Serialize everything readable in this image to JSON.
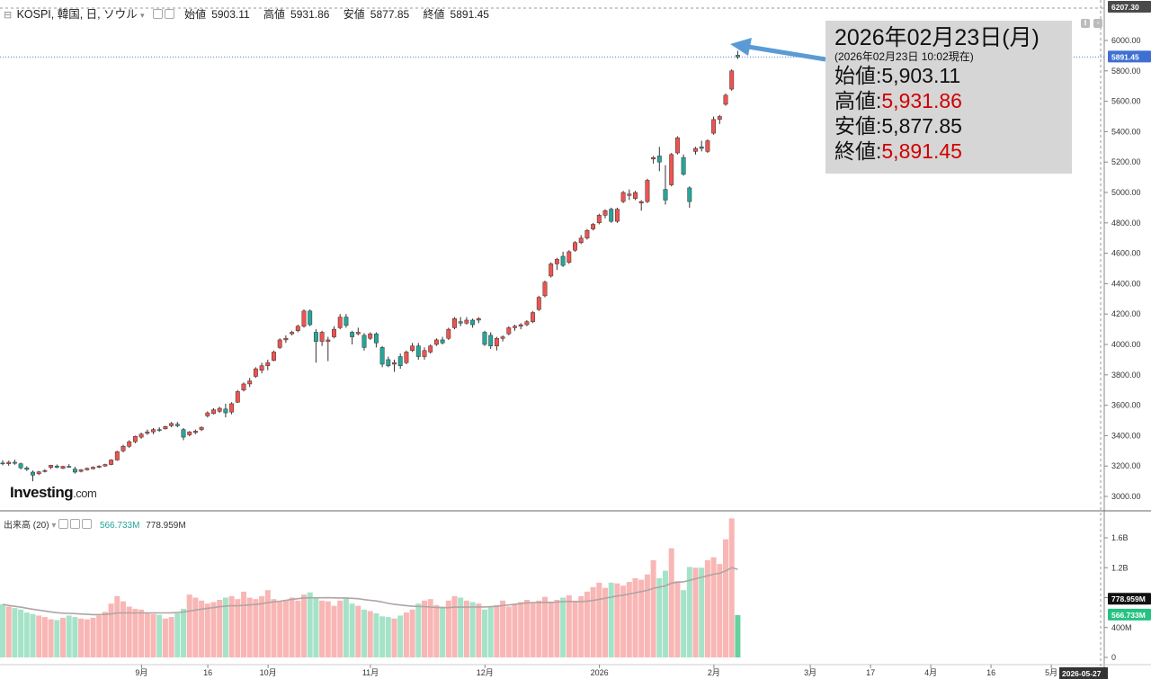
{
  "header": {
    "symbol": "KOSPI, 韓国, 日, ソウル",
    "open_label": "始値",
    "open": "5903.11",
    "high_label": "高値",
    "high": "5931.86",
    "low_label": "安値",
    "low": "5877.85",
    "close_label": "終値",
    "close": "5891.45"
  },
  "volume_header": {
    "label": "出来高 (20)",
    "value1": "566.733M",
    "value2": "778.959M"
  },
  "logo": {
    "main": "Investing",
    "suffix": ".com"
  },
  "info_box": {
    "date": "2026年02月23日(月)",
    "timestamp": "(2026年02月23日 10:02現在)",
    "open_label": "始値:",
    "open": "5,903.11",
    "high_label": "高値:",
    "high": "5,931.86",
    "low_label": "安値:",
    "low": "5,877.85",
    "close_label": "終値:",
    "close": "5,891.45"
  },
  "badges": {
    "top": "6207.30",
    "last": "5891.45",
    "ma": "778.959M",
    "vol": "566.733M",
    "date": "2026-05-27"
  },
  "colors": {
    "up": "#ef5350",
    "down": "#26a69a",
    "up_vol": "#f8b6b4",
    "down_vol": "#a5e3c8",
    "ma": "#b0a4a4",
    "arrow": "#5b9bd5",
    "info_bg": "#d6d6d6"
  },
  "chart_data": [
    {
      "type": "candlestick",
      "title": "KOSPI, 韓国, 日, ソウル",
      "ylim": [
        2900,
        6207.3
      ],
      "y_ticks": [
        3000,
        3200,
        3400,
        3600,
        3800,
        4000,
        4200,
        4400,
        4600,
        4800,
        5000,
        5200,
        5400,
        5600,
        5800,
        6000
      ],
      "y_tick_labels": [
        "3000.00",
        "3200.00",
        "3400.00",
        "3600.00",
        "3800.00",
        "4000.00",
        "4200.00",
        "4400.00",
        "4600.00",
        "4800.00",
        "5000.00",
        "5200.00",
        "5400.00",
        "5600.00",
        "5800.00",
        "6000.00"
      ],
      "x_tick_labels": [
        "9月",
        "16",
        "10月",
        "11月",
        "12月",
        "2026",
        "2月",
        "3月",
        "17",
        "4月",
        "16",
        "5月"
      ],
      "x_tick_index": [
        12,
        23,
        33,
        50,
        69,
        88,
        107,
        123,
        133,
        143,
        153,
        163
      ],
      "grid": false,
      "candles": [
        {
          "o": 3220,
          "h": 3238,
          "l": 3205,
          "c": 3215
        },
        {
          "o": 3215,
          "h": 3235,
          "l": 3202,
          "c": 3225
        },
        {
          "o": 3225,
          "h": 3242,
          "l": 3208,
          "c": 3218
        },
        {
          "o": 3215,
          "h": 3222,
          "l": 3178,
          "c": 3188
        },
        {
          "o": 3188,
          "h": 3198,
          "l": 3168,
          "c": 3178
        },
        {
          "o": 3160,
          "h": 3170,
          "l": 3100,
          "c": 3140
        },
        {
          "o": 3150,
          "h": 3168,
          "l": 3140,
          "c": 3162
        },
        {
          "o": 3165,
          "h": 3180,
          "l": 3158,
          "c": 3170
        },
        {
          "o": 3190,
          "h": 3208,
          "l": 3180,
          "c": 3205
        },
        {
          "o": 3200,
          "h": 3210,
          "l": 3185,
          "c": 3192
        },
        {
          "o": 3185,
          "h": 3202,
          "l": 3180,
          "c": 3198
        },
        {
          "o": 3198,
          "h": 3212,
          "l": 3188,
          "c": 3192
        },
        {
          "o": 3180,
          "h": 3195,
          "l": 3150,
          "c": 3160
        },
        {
          "o": 3165,
          "h": 3180,
          "l": 3158,
          "c": 3175
        },
        {
          "o": 3175,
          "h": 3190,
          "l": 3170,
          "c": 3185
        },
        {
          "o": 3182,
          "h": 3198,
          "l": 3178,
          "c": 3192
        },
        {
          "o": 3192,
          "h": 3205,
          "l": 3186,
          "c": 3200
        },
        {
          "o": 3200,
          "h": 3215,
          "l": 3195,
          "c": 3210
        },
        {
          "o": 3210,
          "h": 3245,
          "l": 3205,
          "c": 3240
        },
        {
          "o": 3240,
          "h": 3300,
          "l": 3235,
          "c": 3295
        },
        {
          "o": 3300,
          "h": 3340,
          "l": 3290,
          "c": 3330
        },
        {
          "o": 3330,
          "h": 3370,
          "l": 3320,
          "c": 3360
        },
        {
          "o": 3360,
          "h": 3400,
          "l": 3350,
          "c": 3395
        },
        {
          "o": 3390,
          "h": 3420,
          "l": 3380,
          "c": 3410
        },
        {
          "o": 3415,
          "h": 3440,
          "l": 3405,
          "c": 3425
        },
        {
          "o": 3425,
          "h": 3450,
          "l": 3410,
          "c": 3440
        },
        {
          "o": 3440,
          "h": 3455,
          "l": 3425,
          "c": 3435
        },
        {
          "o": 3445,
          "h": 3465,
          "l": 3440,
          "c": 3460
        },
        {
          "o": 3465,
          "h": 3490,
          "l": 3455,
          "c": 3480
        },
        {
          "o": 3475,
          "h": 3490,
          "l": 3455,
          "c": 3465
        },
        {
          "o": 3440,
          "h": 3450,
          "l": 3370,
          "c": 3390
        },
        {
          "o": 3405,
          "h": 3430,
          "l": 3395,
          "c": 3425
        },
        {
          "o": 3420,
          "h": 3440,
          "l": 3410,
          "c": 3430
        },
        {
          "o": 3440,
          "h": 3460,
          "l": 3430,
          "c": 3455
        },
        {
          "o": 3530,
          "h": 3560,
          "l": 3520,
          "c": 3550
        },
        {
          "o": 3545,
          "h": 3580,
          "l": 3540,
          "c": 3570
        },
        {
          "o": 3560,
          "h": 3590,
          "l": 3550,
          "c": 3580
        },
        {
          "o": 3575,
          "h": 3610,
          "l": 3520,
          "c": 3550
        },
        {
          "o": 3555,
          "h": 3620,
          "l": 3540,
          "c": 3610
        },
        {
          "o": 3620,
          "h": 3700,
          "l": 3615,
          "c": 3690
        },
        {
          "o": 3700,
          "h": 3750,
          "l": 3690,
          "c": 3740
        },
        {
          "o": 3740,
          "h": 3780,
          "l": 3720,
          "c": 3760
        },
        {
          "o": 3790,
          "h": 3850,
          "l": 3780,
          "c": 3840
        },
        {
          "o": 3830,
          "h": 3880,
          "l": 3810,
          "c": 3860
        },
        {
          "o": 3860,
          "h": 3900,
          "l": 3830,
          "c": 3880
        },
        {
          "o": 3895,
          "h": 3960,
          "l": 3890,
          "c": 3950
        },
        {
          "o": 3980,
          "h": 4040,
          "l": 3970,
          "c": 4030
        },
        {
          "o": 4030,
          "h": 4060,
          "l": 4010,
          "c": 4040
        },
        {
          "o": 4070,
          "h": 4090,
          "l": 4060,
          "c": 4080
        },
        {
          "o": 4090,
          "h": 4130,
          "l": 4080,
          "c": 4120
        },
        {
          "o": 4120,
          "h": 4230,
          "l": 4110,
          "c": 4220
        },
        {
          "o": 4220,
          "h": 4230,
          "l": 4120,
          "c": 4130
        },
        {
          "o": 4080,
          "h": 4100,
          "l": 3880,
          "c": 4020
        },
        {
          "o": 4020,
          "h": 4090,
          "l": 3990,
          "c": 4080
        },
        {
          "o": 4020,
          "h": 4050,
          "l": 3890,
          "c": 4030
        },
        {
          "o": 4050,
          "h": 4120,
          "l": 4040,
          "c": 4100
        },
        {
          "o": 4110,
          "h": 4200,
          "l": 4100,
          "c": 4180
        },
        {
          "o": 4180,
          "h": 4200,
          "l": 4110,
          "c": 4125
        },
        {
          "o": 4080,
          "h": 4090,
          "l": 4000,
          "c": 4050
        },
        {
          "o": 4070,
          "h": 4110,
          "l": 4060,
          "c": 4080
        },
        {
          "o": 4060,
          "h": 4075,
          "l": 3960,
          "c": 3980
        },
        {
          "o": 4040,
          "h": 4080,
          "l": 4030,
          "c": 4070
        },
        {
          "o": 4070,
          "h": 4080,
          "l": 3980,
          "c": 4010
        },
        {
          "o": 3980,
          "h": 3990,
          "l": 3850,
          "c": 3870
        },
        {
          "o": 3900,
          "h": 3920,
          "l": 3850,
          "c": 3860
        },
        {
          "o": 3870,
          "h": 3900,
          "l": 3820,
          "c": 3880
        },
        {
          "o": 3920,
          "h": 3940,
          "l": 3840,
          "c": 3860
        },
        {
          "o": 3880,
          "h": 3960,
          "l": 3870,
          "c": 3950
        },
        {
          "o": 3960,
          "h": 4010,
          "l": 3950,
          "c": 3990
        },
        {
          "o": 3990,
          "h": 4010,
          "l": 3900,
          "c": 3920
        },
        {
          "o": 3920,
          "h": 3980,
          "l": 3900,
          "c": 3960
        },
        {
          "o": 3950,
          "h": 4000,
          "l": 3940,
          "c": 3990
        },
        {
          "o": 4000,
          "h": 4040,
          "l": 3990,
          "c": 4030
        },
        {
          "o": 4030,
          "h": 4050,
          "l": 4000,
          "c": 4010
        },
        {
          "o": 4040,
          "h": 4110,
          "l": 4030,
          "c": 4100
        },
        {
          "o": 4110,
          "h": 4180,
          "l": 4100,
          "c": 4170
        },
        {
          "o": 4150,
          "h": 4180,
          "l": 4120,
          "c": 4140
        },
        {
          "o": 4140,
          "h": 4180,
          "l": 4130,
          "c": 4160
        },
        {
          "o": 4160,
          "h": 4170,
          "l": 4110,
          "c": 4130
        },
        {
          "o": 4160,
          "h": 4180,
          "l": 4140,
          "c": 4170
        },
        {
          "o": 4080,
          "h": 4090,
          "l": 3990,
          "c": 4000
        },
        {
          "o": 4060,
          "h": 4080,
          "l": 3970,
          "c": 3990
        },
        {
          "o": 3990,
          "h": 4050,
          "l": 3960,
          "c": 4040
        },
        {
          "o": 4040,
          "h": 4060,
          "l": 4020,
          "c": 4050
        },
        {
          "o": 4070,
          "h": 4120,
          "l": 4060,
          "c": 4110
        },
        {
          "o": 4110,
          "h": 4130,
          "l": 4090,
          "c": 4120
        },
        {
          "o": 4120,
          "h": 4140,
          "l": 4100,
          "c": 4130
        },
        {
          "o": 4130,
          "h": 4160,
          "l": 4120,
          "c": 4150
        },
        {
          "o": 4150,
          "h": 4220,
          "l": 4140,
          "c": 4210
        },
        {
          "o": 4230,
          "h": 4320,
          "l": 4220,
          "c": 4310
        },
        {
          "o": 4320,
          "h": 4420,
          "l": 4310,
          "c": 4410
        },
        {
          "o": 4450,
          "h": 4540,
          "l": 4440,
          "c": 4530
        },
        {
          "o": 4530,
          "h": 4570,
          "l": 4490,
          "c": 4560
        },
        {
          "o": 4580,
          "h": 4610,
          "l": 4510,
          "c": 4520
        },
        {
          "o": 4540,
          "h": 4620,
          "l": 4530,
          "c": 4610
        },
        {
          "o": 4620,
          "h": 4680,
          "l": 4610,
          "c": 4670
        },
        {
          "o": 4670,
          "h": 4720,
          "l": 4660,
          "c": 4700
        },
        {
          "o": 4700,
          "h": 4760,
          "l": 4690,
          "c": 4750
        },
        {
          "o": 4760,
          "h": 4800,
          "l": 4750,
          "c": 4790
        },
        {
          "o": 4800,
          "h": 4860,
          "l": 4790,
          "c": 4850
        },
        {
          "o": 4850,
          "h": 4890,
          "l": 4830,
          "c": 4880
        },
        {
          "o": 4890,
          "h": 4900,
          "l": 4800,
          "c": 4810
        },
        {
          "o": 4810,
          "h": 4900,
          "l": 4800,
          "c": 4890
        },
        {
          "o": 4940,
          "h": 5010,
          "l": 4930,
          "c": 5000
        },
        {
          "o": 4980,
          "h": 5020,
          "l": 4950,
          "c": 4990
        },
        {
          "o": 4960,
          "h": 5010,
          "l": 4950,
          "c": 5000
        },
        {
          "o": 4930,
          "h": 4950,
          "l": 4880,
          "c": 4940
        },
        {
          "o": 4940,
          "h": 5090,
          "l": 4930,
          "c": 5080
        },
        {
          "o": 5220,
          "h": 5240,
          "l": 5190,
          "c": 5230
        },
        {
          "o": 5240,
          "h": 5300,
          "l": 5140,
          "c": 5200
        },
        {
          "o": 5020,
          "h": 5180,
          "l": 4920,
          "c": 4950
        },
        {
          "o": 5050,
          "h": 5260,
          "l": 5040,
          "c": 5250
        },
        {
          "o": 5260,
          "h": 5370,
          "l": 5250,
          "c": 5360
        },
        {
          "o": 5230,
          "h": 5250,
          "l": 5110,
          "c": 5120
        },
        {
          "o": 5030,
          "h": 5040,
          "l": 4900,
          "c": 4940
        },
        {
          "o": 5270,
          "h": 5300,
          "l": 5250,
          "c": 5290
        },
        {
          "o": 5300,
          "h": 5340,
          "l": 5270,
          "c": 5290
        },
        {
          "o": 5270,
          "h": 5350,
          "l": 5260,
          "c": 5340
        },
        {
          "o": 5390,
          "h": 5500,
          "l": 5380,
          "c": 5480
        },
        {
          "o": 5480,
          "h": 5510,
          "l": 5450,
          "c": 5500
        },
        {
          "o": 5580,
          "h": 5650,
          "l": 5570,
          "c": 5640
        },
        {
          "o": 5680,
          "h": 5810,
          "l": 5670,
          "c": 5800
        },
        {
          "o": 5903.11,
          "h": 5931.86,
          "l": 5877.85,
          "c": 5891.45
        }
      ]
    },
    {
      "type": "bar",
      "title": "出来高 (20)",
      "ylim": [
        0,
        1900
      ],
      "y_ticks": [
        0,
        400,
        800,
        1200,
        1600
      ],
      "y_tick_labels": [
        "0",
        "400M",
        "800M",
        "1.2B",
        "1.6B"
      ],
      "values_millions": [
        710,
        680,
        660,
        640,
        600,
        580,
        560,
        540,
        510,
        500,
        530,
        560,
        540,
        520,
        510,
        530,
        560,
        610,
        720,
        820,
        750,
        680,
        650,
        640,
        600,
        580,
        570,
        520,
        540,
        590,
        650,
        840,
        800,
        760,
        720,
        740,
        770,
        800,
        820,
        780,
        880,
        800,
        780,
        820,
        900,
        780,
        750,
        770,
        800,
        760,
        840,
        870,
        800,
        760,
        750,
        690,
        760,
        790,
        720,
        690,
        640,
        620,
        590,
        550,
        540,
        520,
        560,
        600,
        640,
        720,
        760,
        780,
        700,
        680,
        760,
        820,
        800,
        760,
        740,
        720,
        640,
        680,
        700,
        760,
        680,
        720,
        740,
        770,
        740,
        760,
        810,
        740,
        770,
        800,
        830,
        760,
        820,
        880,
        940,
        1000,
        930,
        1000,
        990,
        960,
        1010,
        1060,
        1040,
        1110,
        1300,
        1060,
        1160,
        1460,
        1020,
        900,
        1210,
        1200,
        1200,
        1300,
        1340,
        1250,
        1580,
        1860,
        566.733
      ],
      "moving_average": {
        "name": "MA 20",
        "value": "778.959M"
      }
    }
  ]
}
